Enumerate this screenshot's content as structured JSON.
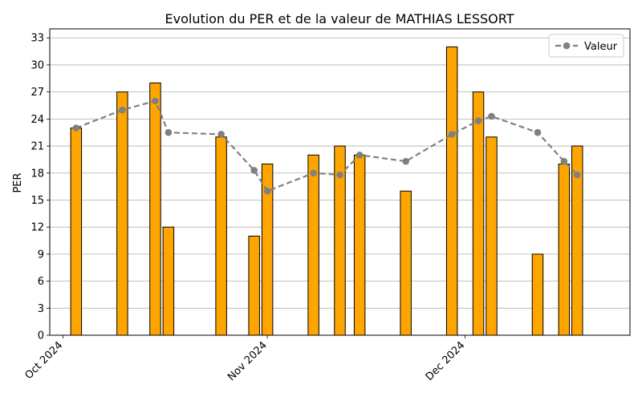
{
  "chart_data": {
    "type": "bar",
    "title": "Evolution du PER et de la valeur de MATHIAS LESSORT",
    "xlabel": "",
    "ylabel": "PER",
    "ylim": [
      0,
      34
    ],
    "yticks": [
      0,
      3,
      6,
      9,
      12,
      15,
      18,
      21,
      24,
      27,
      30,
      33
    ],
    "xlim": [
      "2024-09-29",
      "2024-12-26"
    ],
    "xticks": [
      {
        "date": "2024-10-01",
        "label": "Oct 2024"
      },
      {
        "date": "2024-11-01",
        "label": "Nov 2024"
      },
      {
        "date": "2024-12-01",
        "label": "Dec 2024"
      }
    ],
    "grid": "y",
    "bar_color": "#ffa500",
    "line_color": "#808080",
    "legend": {
      "position": "top-right",
      "entries": [
        "Valeur"
      ]
    },
    "x": [
      "2024-10-03",
      "2024-10-10",
      "2024-10-15",
      "2024-10-17",
      "2024-10-25",
      "2024-10-30",
      "2024-11-01",
      "2024-11-08",
      "2024-11-12",
      "2024-11-15",
      "2024-11-22",
      "2024-11-29",
      "2024-12-03",
      "2024-12-05",
      "2024-12-12",
      "2024-12-16",
      "2024-12-18"
    ],
    "series": [
      {
        "kind": "bar",
        "values": [
          23,
          27,
          28,
          12,
          22,
          11,
          19,
          20,
          21,
          20,
          16,
          32,
          27,
          22,
          9,
          19,
          21
        ]
      },
      {
        "kind": "line",
        "name": "Valeur",
        "values": [
          23,
          25,
          26,
          22.5,
          22.3,
          18.3,
          16,
          18,
          17.8,
          20,
          19.3,
          22.3,
          23.8,
          24.3,
          22.5,
          19.3,
          17.8
        ]
      }
    ]
  }
}
